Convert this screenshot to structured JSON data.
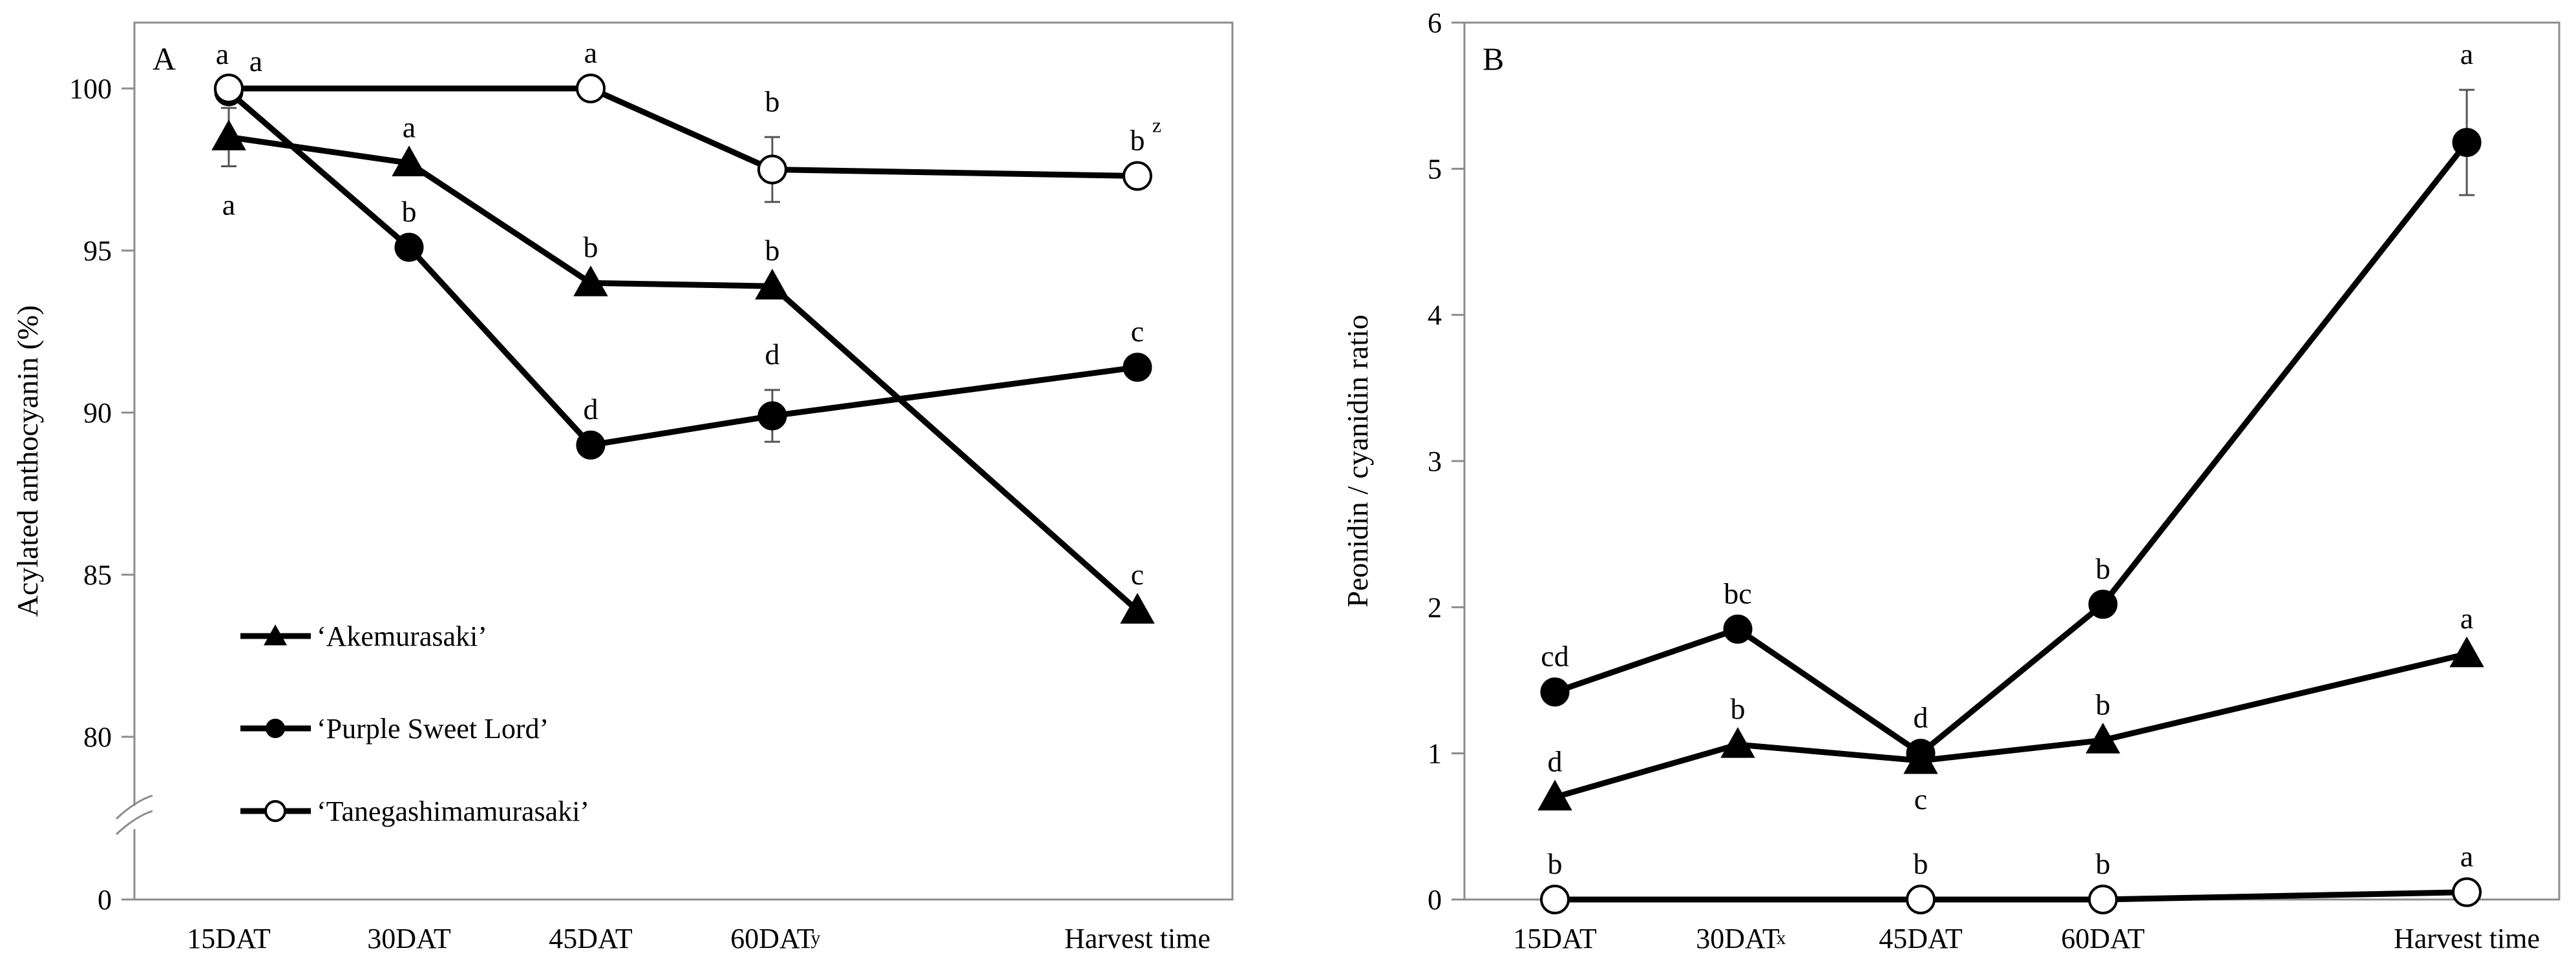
{
  "chart_data": [
    {
      "type": "line",
      "panel_label": "A",
      "ylabel": "Acylated anthocyanin (%)",
      "categories": [
        "15DAT",
        "30DAT",
        "45DAT",
        "60DAT",
        "Harvest time"
      ],
      "category_superscripts": [
        "",
        "",
        "",
        "y",
        ""
      ],
      "ylim": [
        80,
        102
      ],
      "broken_axis_baseline": 0,
      "yticks": [
        80,
        85,
        90,
        95,
        100
      ],
      "ytick_labels": [
        "80",
        "85",
        "90",
        "95",
        "100"
      ],
      "baseline_label": "0",
      "legend_position": "lower-left",
      "series": [
        {
          "name": "‘Akemurasaki’",
          "marker": "triangle",
          "values": [
            98.5,
            97.7,
            94.0,
            93.9,
            83.9
          ],
          "errors": [
            0.9,
            0,
            0,
            0,
            0
          ],
          "letters": [
            "a",
            "a",
            "b",
            "b",
            "c"
          ],
          "letter_positions": [
            "below",
            "above",
            "above",
            "above",
            "above"
          ]
        },
        {
          "name": "‘Purple Sweet Lord’",
          "marker": "filled-circle",
          "values": [
            99.9,
            95.1,
            89.0,
            89.9,
            91.4
          ],
          "errors": [
            0,
            0,
            0,
            0.8,
            0
          ],
          "letters": [
            "a",
            "b",
            "d",
            "d",
            "c"
          ],
          "letter_positions": [
            "above-right",
            "above",
            "above",
            "above",
            "above"
          ]
        },
        {
          "name": "‘Tanegashimamurasaki’",
          "marker": "open-circle",
          "values": [
            100,
            null,
            100,
            97.5,
            97.3
          ],
          "errors": [
            0,
            0,
            0,
            1.0,
            0
          ],
          "letters": [
            "a",
            "",
            "a",
            "b",
            "b"
          ],
          "letter_positions": [
            "above-left",
            "",
            "above",
            "above",
            "above"
          ]
        }
      ],
      "footnote_mark": {
        "series": 2,
        "point": 4,
        "text": "z"
      }
    },
    {
      "type": "line",
      "panel_label": "B",
      "ylabel": "Peonidin / cyanidin ratio",
      "categories": [
        "15DAT",
        "30DAT",
        "45DAT",
        "60DAT",
        "Harvest time"
      ],
      "category_superscripts": [
        "",
        "x",
        "",
        "",
        ""
      ],
      "ylim": [
        0,
        6
      ],
      "yticks": [
        0,
        1,
        2,
        3,
        4,
        5,
        6
      ],
      "ytick_labels": [
        "0",
        "1",
        "2",
        "3",
        "4",
        "5",
        "6"
      ],
      "series": [
        {
          "name": "‘Akemurasaki’",
          "marker": "triangle",
          "values": [
            0.7,
            1.06,
            0.95,
            1.09,
            1.68
          ],
          "errors": [
            0,
            0,
            0,
            0,
            0
          ],
          "letters": [
            "d",
            "b",
            "c",
            "b",
            "a"
          ],
          "letter_positions": [
            "above",
            "above",
            "below",
            "above",
            "above"
          ]
        },
        {
          "name": "‘Purple Sweet Lord’",
          "marker": "filled-circle",
          "values": [
            1.42,
            1.85,
            1.0,
            2.02,
            5.18
          ],
          "errors": [
            0,
            0,
            0,
            0,
            0.36
          ],
          "letters": [
            "cd",
            "bc",
            "d",
            "b",
            "a"
          ],
          "letter_positions": [
            "above",
            "above",
            "above",
            "above",
            "above"
          ]
        },
        {
          "name": "‘Tanegashimamurasaki’",
          "marker": "open-circle",
          "values": [
            0.0,
            null,
            0.0,
            0.0,
            0.05
          ],
          "errors": [
            0,
            0,
            0,
            0,
            0
          ],
          "letters": [
            "b",
            "",
            "b",
            "b",
            "a"
          ],
          "letter_positions": [
            "above",
            "",
            "above",
            "above",
            "above"
          ]
        }
      ]
    }
  ]
}
